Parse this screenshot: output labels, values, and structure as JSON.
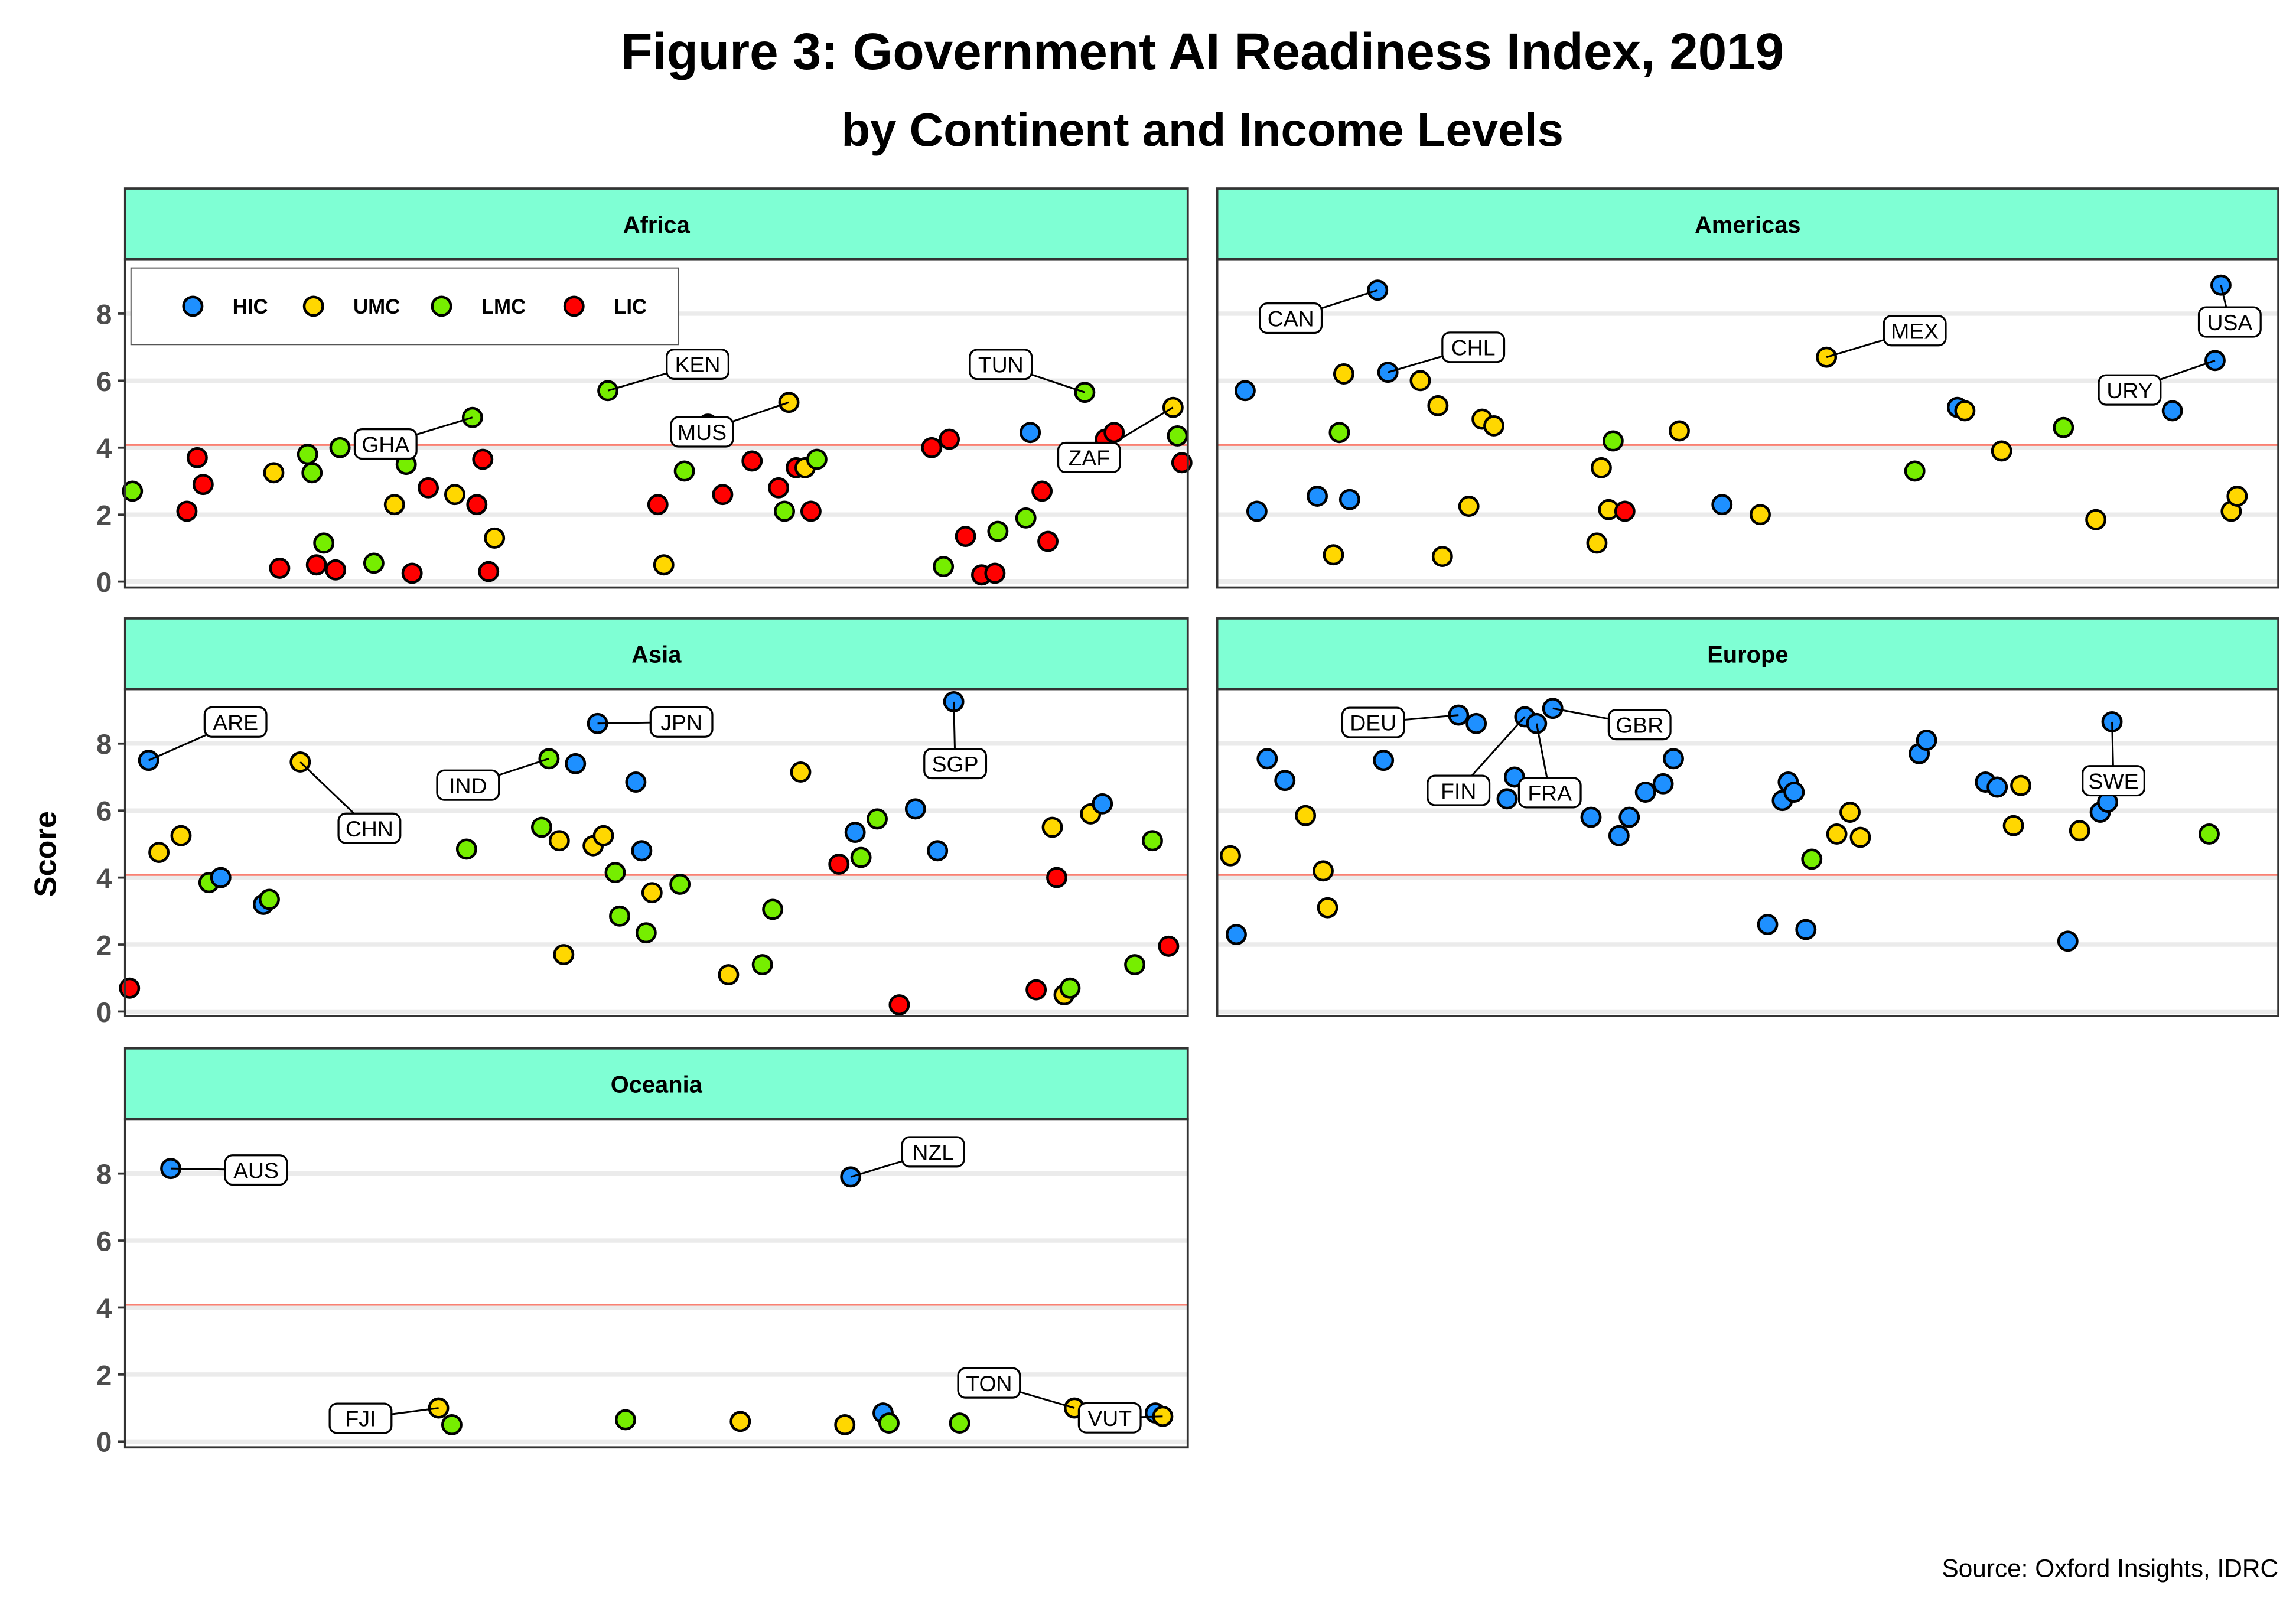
{
  "chart_data": {
    "type": "scatter",
    "title": "Figure 3: Government AI Readiness Index, 2019",
    "subtitle": "by Continent and Income Levels",
    "ylabel": "Score",
    "xlabel": "",
    "source": "Source: Oxford Insights, IDRC",
    "ylim": [
      0,
      9.6
    ],
    "yticks": [
      "0",
      "2",
      "4",
      "6",
      "8"
    ],
    "reference_line": 4.08,
    "grid": true,
    "legend": {
      "placement": "top-left inside Africa panel",
      "entries": [
        "HIC",
        "UMC",
        "LMC",
        "LIC"
      ]
    },
    "colors": {
      "HIC": "#1e90ff",
      "UMC": "#ffd700",
      "LMC": "#76ee00",
      "LIC": "#ff0000",
      "strip": "#7fffd4",
      "reference_line": "#fa8072"
    },
    "x_order": "countries ordered alphabetically within each continent (jittered)",
    "panels": [
      {
        "name": "Africa",
        "points": [
          {
            "score": 2.7,
            "income": "LMC"
          },
          {
            "score": 2.1,
            "income": "LIC"
          },
          {
            "score": 3.7,
            "income": "LIC"
          },
          {
            "score": 2.9,
            "income": "LIC"
          },
          {
            "score": 3.25,
            "income": "UMC"
          },
          {
            "score": 0.4,
            "income": "LIC"
          },
          {
            "score": 3.8,
            "income": "LMC"
          },
          {
            "score": 3.25,
            "income": "LMC"
          },
          {
            "score": 0.5,
            "income": "LIC"
          },
          {
            "score": 1.15,
            "income": "LMC"
          },
          {
            "score": 0.35,
            "income": "LIC"
          },
          {
            "score": 4.0,
            "income": "LMC"
          },
          {
            "score": 0.55,
            "income": "LMC"
          },
          {
            "score": 2.3,
            "income": "UMC"
          },
          {
            "score": 3.5,
            "income": "LMC"
          },
          {
            "score": 0.25,
            "income": "LIC"
          },
          {
            "score": 2.8,
            "income": "LIC"
          },
          {
            "score": 2.6,
            "income": "UMC"
          },
          {
            "score": 4.9,
            "income": "LMC",
            "label": "GHA"
          },
          {
            "score": 2.3,
            "income": "LIC"
          },
          {
            "score": 3.65,
            "income": "LIC"
          },
          {
            "score": 0.3,
            "income": "LIC"
          },
          {
            "score": 1.3,
            "income": "UMC"
          },
          {
            "score": 5.7,
            "income": "LMC",
            "label": "KEN"
          },
          {
            "score": 2.3,
            "income": "LIC"
          },
          {
            "score": 0.5,
            "income": "UMC"
          },
          {
            "score": 3.3,
            "income": "LMC"
          },
          {
            "score": 4.7,
            "income": "UMC"
          },
          {
            "score": 2.6,
            "income": "LIC"
          },
          {
            "score": 3.6,
            "income": "LIC"
          },
          {
            "score": 2.8,
            "income": "LIC"
          },
          {
            "score": 2.1,
            "income": "LMC"
          },
          {
            "score": 5.35,
            "income": "UMC",
            "label": "MUS"
          },
          {
            "score": 3.4,
            "income": "LIC"
          },
          {
            "score": 3.4,
            "income": "UMC"
          },
          {
            "score": 2.1,
            "income": "LIC"
          },
          {
            "score": 3.65,
            "income": "LMC"
          },
          {
            "score": 4.0,
            "income": "LIC"
          },
          {
            "score": 0.45,
            "income": "LMC"
          },
          {
            "score": 4.25,
            "income": "LIC"
          },
          {
            "score": 1.35,
            "income": "LIC"
          },
          {
            "score": 0.2,
            "income": "LIC"
          },
          {
            "score": 0.25,
            "income": "LIC"
          },
          {
            "score": 1.5,
            "income": "LMC"
          },
          {
            "score": 1.9,
            "income": "LMC"
          },
          {
            "score": 4.45,
            "income": "HIC"
          },
          {
            "score": 2.7,
            "income": "LIC"
          },
          {
            "score": 1.2,
            "income": "LIC"
          },
          {
            "score": 5.65,
            "income": "LMC",
            "label": "TUN"
          },
          {
            "score": 4.25,
            "income": "LIC"
          },
          {
            "score": 4.45,
            "income": "LIC"
          },
          {
            "score": 5.2,
            "income": "UMC",
            "label": "ZAF"
          },
          {
            "score": 4.35,
            "income": "LMC"
          },
          {
            "score": 3.55,
            "income": "LIC"
          }
        ]
      },
      {
        "name": "Americas",
        "points": [
          {
            "score": 5.7,
            "income": "HIC"
          },
          {
            "score": 2.1,
            "income": "HIC"
          },
          {
            "score": 2.55,
            "income": "HIC"
          },
          {
            "score": 0.8,
            "income": "UMC"
          },
          {
            "score": 4.45,
            "income": "LMC"
          },
          {
            "score": 6.2,
            "income": "UMC"
          },
          {
            "score": 2.45,
            "income": "HIC"
          },
          {
            "score": 8.7,
            "income": "HIC",
            "label": "CAN"
          },
          {
            "score": 6.25,
            "income": "HIC",
            "label": "CHL"
          },
          {
            "score": 6.0,
            "income": "UMC"
          },
          {
            "score": 5.25,
            "income": "UMC"
          },
          {
            "score": 0.75,
            "income": "UMC"
          },
          {
            "score": 2.25,
            "income": "UMC"
          },
          {
            "score": 4.85,
            "income": "UMC"
          },
          {
            "score": 4.65,
            "income": "UMC"
          },
          {
            "score": 1.15,
            "income": "UMC"
          },
          {
            "score": 3.4,
            "income": "UMC"
          },
          {
            "score": 2.15,
            "income": "UMC"
          },
          {
            "score": 4.2,
            "income": "LMC"
          },
          {
            "score": 2.1,
            "income": "LIC"
          },
          {
            "score": 4.5,
            "income": "UMC"
          },
          {
            "score": 2.3,
            "income": "HIC"
          },
          {
            "score": 2.0,
            "income": "UMC"
          },
          {
            "score": 6.7,
            "income": "UMC",
            "label": "MEX"
          },
          {
            "score": 3.3,
            "income": "LMC"
          },
          {
            "score": 5.2,
            "income": "HIC"
          },
          {
            "score": 5.1,
            "income": "UMC"
          },
          {
            "score": 3.9,
            "income": "UMC"
          },
          {
            "score": 4.6,
            "income": "LMC"
          },
          {
            "score": 1.85,
            "income": "UMC"
          },
          {
            "score": 5.1,
            "income": "HIC"
          },
          {
            "score": 6.6,
            "income": "HIC",
            "label": "URY"
          },
          {
            "score": 8.85,
            "income": "HIC",
            "label": "USA"
          },
          {
            "score": 2.1,
            "income": "UMC"
          },
          {
            "score": 2.55,
            "income": "UMC"
          }
        ]
      },
      {
        "name": "Asia",
        "points": [
          {
            "score": 0.7,
            "income": "LIC"
          },
          {
            "score": 7.5,
            "income": "HIC",
            "label": "ARE"
          },
          {
            "score": 4.75,
            "income": "UMC"
          },
          {
            "score": 5.25,
            "income": "UMC"
          },
          {
            "score": 3.85,
            "income": "LMC"
          },
          {
            "score": 4.0,
            "income": "HIC"
          },
          {
            "score": 3.2,
            "income": "HIC"
          },
          {
            "score": 3.35,
            "income": "LMC"
          },
          {
            "score": 7.45,
            "income": "UMC",
            "label": "CHN"
          },
          {
            "score": 4.85,
            "income": "LMC"
          },
          {
            "score": 5.5,
            "income": "LMC"
          },
          {
            "score": 7.55,
            "income": "LMC",
            "label": "IND"
          },
          {
            "score": 5.1,
            "income": "UMC"
          },
          {
            "score": 1.7,
            "income": "UMC"
          },
          {
            "score": 7.4,
            "income": "HIC"
          },
          {
            "score": 4.95,
            "income": "UMC"
          },
          {
            "score": 8.6,
            "income": "HIC",
            "label": "JPN"
          },
          {
            "score": 5.25,
            "income": "UMC"
          },
          {
            "score": 4.15,
            "income": "LMC"
          },
          {
            "score": 2.85,
            "income": "LMC"
          },
          {
            "score": 6.85,
            "income": "HIC"
          },
          {
            "score": 4.8,
            "income": "HIC"
          },
          {
            "score": 2.35,
            "income": "LMC"
          },
          {
            "score": 3.55,
            "income": "UMC"
          },
          {
            "score": 3.8,
            "income": "LMC"
          },
          {
            "score": 1.1,
            "income": "UMC"
          },
          {
            "score": 1.4,
            "income": "LMC"
          },
          {
            "score": 3.05,
            "income": "LMC"
          },
          {
            "score": 7.15,
            "income": "UMC"
          },
          {
            "score": 4.4,
            "income": "LIC"
          },
          {
            "score": 5.35,
            "income": "HIC"
          },
          {
            "score": 4.6,
            "income": "LMC"
          },
          {
            "score": 5.75,
            "income": "LMC"
          },
          {
            "score": 0.2,
            "income": "LIC"
          },
          {
            "score": 6.05,
            "income": "HIC"
          },
          {
            "score": 4.8,
            "income": "HIC"
          },
          {
            "score": 9.25,
            "income": "HIC",
            "label": "SGP"
          },
          {
            "score": 0.65,
            "income": "LIC"
          },
          {
            "score": 5.5,
            "income": "UMC"
          },
          {
            "score": 4.0,
            "income": "LIC"
          },
          {
            "score": 0.5,
            "income": "UMC"
          },
          {
            "score": 0.7,
            "income": "LMC"
          },
          {
            "score": 5.9,
            "income": "UMC"
          },
          {
            "score": 6.2,
            "income": "HIC"
          },
          {
            "score": 1.4,
            "income": "LMC"
          },
          {
            "score": 5.1,
            "income": "LMC"
          },
          {
            "score": 1.95,
            "income": "LIC"
          }
        ]
      },
      {
        "name": "Europe",
        "points": [
          {
            "score": 4.65,
            "income": "UMC"
          },
          {
            "score": 2.3,
            "income": "HIC"
          },
          {
            "score": 7.55,
            "income": "HIC"
          },
          {
            "score": 6.9,
            "income": "HIC"
          },
          {
            "score": 5.85,
            "income": "UMC"
          },
          {
            "score": 4.2,
            "income": "UMC"
          },
          {
            "score": 3.1,
            "income": "UMC"
          },
          {
            "score": 7.5,
            "income": "HIC"
          },
          {
            "score": 8.85,
            "income": "HIC",
            "label": "DEU"
          },
          {
            "score": 8.6,
            "income": "HIC"
          },
          {
            "score": 6.35,
            "income": "HIC"
          },
          {
            "score": 7.0,
            "income": "HIC"
          },
          {
            "score": 8.8,
            "income": "HIC",
            "label": "FIN"
          },
          {
            "score": 8.6,
            "income": "HIC",
            "label": "FRA"
          },
          {
            "score": 9.05,
            "income": "HIC",
            "label": "GBR"
          },
          {
            "score": 5.8,
            "income": "HIC"
          },
          {
            "score": 5.25,
            "income": "HIC"
          },
          {
            "score": 5.8,
            "income": "HIC"
          },
          {
            "score": 6.55,
            "income": "HIC"
          },
          {
            "score": 6.8,
            "income": "HIC"
          },
          {
            "score": 7.55,
            "income": "HIC"
          },
          {
            "score": 2.6,
            "income": "HIC"
          },
          {
            "score": 6.3,
            "income": "HIC"
          },
          {
            "score": 6.85,
            "income": "HIC"
          },
          {
            "score": 6.55,
            "income": "HIC"
          },
          {
            "score": 2.45,
            "income": "HIC"
          },
          {
            "score": 4.55,
            "income": "LMC"
          },
          {
            "score": 5.3,
            "income": "UMC"
          },
          {
            "score": 5.95,
            "income": "UMC"
          },
          {
            "score": 5.2,
            "income": "UMC"
          },
          {
            "score": 7.7,
            "income": "HIC"
          },
          {
            "score": 8.1,
            "income": "HIC"
          },
          {
            "score": 6.85,
            "income": "HIC"
          },
          {
            "score": 6.7,
            "income": "HIC"
          },
          {
            "score": 5.55,
            "income": "UMC"
          },
          {
            "score": 6.75,
            "income": "UMC"
          },
          {
            "score": 2.1,
            "income": "HIC"
          },
          {
            "score": 5.4,
            "income": "UMC"
          },
          {
            "score": 5.95,
            "income": "HIC"
          },
          {
            "score": 6.25,
            "income": "HIC"
          },
          {
            "score": 8.65,
            "income": "HIC",
            "label": "SWE"
          },
          {
            "score": 5.3,
            "income": "LMC"
          }
        ]
      },
      {
        "name": "Oceania",
        "points": [
          {
            "score": 8.15,
            "income": "HIC",
            "label": "AUS"
          },
          {
            "score": 1.0,
            "income": "UMC",
            "label": "FJI"
          },
          {
            "score": 0.5,
            "income": "LMC"
          },
          {
            "score": 0.65,
            "income": "LMC"
          },
          {
            "score": 0.6,
            "income": "UMC"
          },
          {
            "score": 0.5,
            "income": "UMC"
          },
          {
            "score": 7.9,
            "income": "HIC",
            "label": "NZL"
          },
          {
            "score": 0.85,
            "income": "HIC"
          },
          {
            "score": 0.55,
            "income": "LMC"
          },
          {
            "score": 0.55,
            "income": "LMC"
          },
          {
            "score": 1.0,
            "income": "UMC",
            "label": "TON"
          },
          {
            "score": 0.85,
            "income": "HIC"
          },
          {
            "score": 0.75,
            "income": "UMC",
            "label": "VUT"
          }
        ]
      }
    ]
  }
}
